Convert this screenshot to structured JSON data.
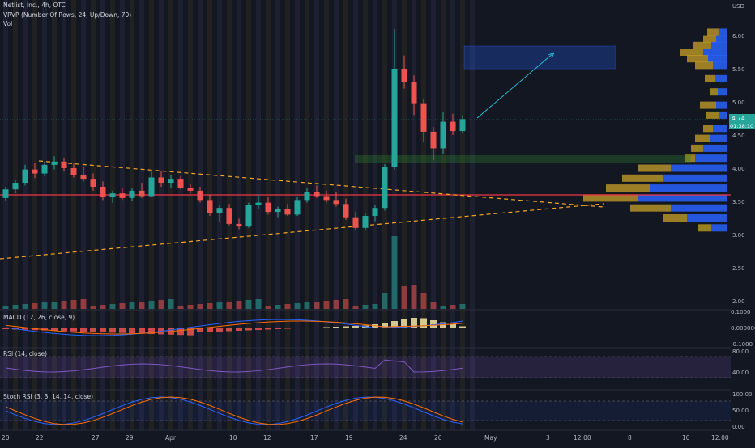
{
  "header": {
    "symbol_line": "Netlist, Inc., 4h, OTC",
    "indicator_vrvp": "VRVP (Number Of Rows, 24, Up/Down, 70)",
    "indicator_vol": "Vol"
  },
  "price_axis": {
    "currency": "USD",
    "ticks": [
      "6.00",
      "5.50",
      "5.00",
      "4.50",
      "4.00",
      "3.50",
      "3.00",
      "2.50",
      "2.00"
    ],
    "last_price": "4.74",
    "countdown": "01:38:10"
  },
  "time_axis": {
    "labels": [
      "20",
      "22",
      "27",
      "29",
      "Apr",
      "10",
      "12",
      "17",
      "19",
      "24",
      "26",
      "May",
      "3",
      "12:00",
      "8",
      "10",
      "12:00"
    ]
  },
  "macd": {
    "label": "MACD (12, 26, close, 9)",
    "ticks": [
      "0.1000",
      "0.000000",
      "-0.1000"
    ]
  },
  "rsi": {
    "label": "RSI (14, close)",
    "ticks": [
      "80.00",
      "40.00"
    ]
  },
  "stoch": {
    "label": "Stoch RSI (3, 3, 14, 14, close)",
    "ticks": [
      "100.00",
      "50.00",
      "0.00"
    ]
  },
  "colors": {
    "background": "#131722",
    "up": "#26a69a",
    "down": "#ef5350",
    "trendline": "#f5a623",
    "resistance": "#f23645",
    "rsi_band": "#7e57c2",
    "vrvp_up": "#2962ff",
    "vrvp_down": "#c9a227"
  },
  "chart_data": {
    "type": "candlestick",
    "title": "Netlist, Inc., 4h, OTC",
    "ylim": [
      2.0,
      6.2
    ],
    "candles": [
      {
        "o": 3.55,
        "h": 3.72,
        "l": 3.5,
        "c": 3.68
      },
      {
        "o": 3.68,
        "h": 3.82,
        "l": 3.62,
        "c": 3.78
      },
      {
        "o": 3.78,
        "h": 4.05,
        "l": 3.74,
        "c": 3.98
      },
      {
        "o": 3.98,
        "h": 4.08,
        "l": 3.85,
        "c": 3.92
      },
      {
        "o": 3.92,
        "h": 4.1,
        "l": 3.88,
        "c": 4.05
      },
      {
        "o": 4.05,
        "h": 4.18,
        "l": 3.98,
        "c": 4.1
      },
      {
        "o": 4.1,
        "h": 4.16,
        "l": 3.96,
        "c": 4.0
      },
      {
        "o": 4.0,
        "h": 4.08,
        "l": 3.86,
        "c": 3.9
      },
      {
        "o": 3.9,
        "h": 4.02,
        "l": 3.8,
        "c": 3.84
      },
      {
        "o": 3.84,
        "h": 3.92,
        "l": 3.66,
        "c": 3.72
      },
      {
        "o": 3.72,
        "h": 3.8,
        "l": 3.52,
        "c": 3.56
      },
      {
        "o": 3.56,
        "h": 3.66,
        "l": 3.48,
        "c": 3.62
      },
      {
        "o": 3.62,
        "h": 3.7,
        "l": 3.52,
        "c": 3.55
      },
      {
        "o": 3.55,
        "h": 3.7,
        "l": 3.5,
        "c": 3.66
      },
      {
        "o": 3.66,
        "h": 3.78,
        "l": 3.55,
        "c": 3.58
      },
      {
        "o": 3.58,
        "h": 3.95,
        "l": 3.56,
        "c": 3.86
      },
      {
        "o": 3.86,
        "h": 3.96,
        "l": 3.72,
        "c": 3.78
      },
      {
        "o": 3.78,
        "h": 3.9,
        "l": 3.7,
        "c": 3.84
      },
      {
        "o": 3.84,
        "h": 3.88,
        "l": 3.68,
        "c": 3.7
      },
      {
        "o": 3.7,
        "h": 3.76,
        "l": 3.62,
        "c": 3.66
      },
      {
        "o": 3.66,
        "h": 3.72,
        "l": 3.48,
        "c": 3.52
      },
      {
        "o": 3.52,
        "h": 3.6,
        "l": 3.28,
        "c": 3.32
      },
      {
        "o": 3.32,
        "h": 3.45,
        "l": 3.18,
        "c": 3.4
      },
      {
        "o": 3.4,
        "h": 3.46,
        "l": 3.14,
        "c": 3.16
      },
      {
        "o": 3.16,
        "h": 3.24,
        "l": 3.08,
        "c": 3.12
      },
      {
        "o": 3.12,
        "h": 3.48,
        "l": 3.1,
        "c": 3.44
      },
      {
        "o": 3.44,
        "h": 3.6,
        "l": 3.38,
        "c": 3.48
      },
      {
        "o": 3.48,
        "h": 3.56,
        "l": 3.3,
        "c": 3.34
      },
      {
        "o": 3.34,
        "h": 3.42,
        "l": 3.26,
        "c": 3.38
      },
      {
        "o": 3.38,
        "h": 3.46,
        "l": 3.28,
        "c": 3.3
      },
      {
        "o": 3.3,
        "h": 3.56,
        "l": 3.28,
        "c": 3.52
      },
      {
        "o": 3.52,
        "h": 3.7,
        "l": 3.48,
        "c": 3.64
      },
      {
        "o": 3.64,
        "h": 3.74,
        "l": 3.55,
        "c": 3.58
      },
      {
        "o": 3.58,
        "h": 3.66,
        "l": 3.48,
        "c": 3.52
      },
      {
        "o": 3.52,
        "h": 3.64,
        "l": 3.42,
        "c": 3.46
      },
      {
        "o": 3.46,
        "h": 3.54,
        "l": 3.22,
        "c": 3.26
      },
      {
        "o": 3.26,
        "h": 3.34,
        "l": 3.06,
        "c": 3.1
      },
      {
        "o": 3.1,
        "h": 3.32,
        "l": 3.06,
        "c": 3.28
      },
      {
        "o": 3.28,
        "h": 3.44,
        "l": 3.2,
        "c": 3.4
      },
      {
        "o": 3.4,
        "h": 4.06,
        "l": 3.36,
        "c": 4.02
      },
      {
        "o": 4.02,
        "h": 6.1,
        "l": 3.98,
        "c": 5.5
      },
      {
        "o": 5.5,
        "h": 5.7,
        "l": 5.2,
        "c": 5.3
      },
      {
        "o": 5.3,
        "h": 5.4,
        "l": 4.8,
        "c": 4.98
      },
      {
        "o": 4.98,
        "h": 5.05,
        "l": 4.4,
        "c": 4.55
      },
      {
        "o": 4.55,
        "h": 4.62,
        "l": 4.12,
        "c": 4.3
      },
      {
        "o": 4.3,
        "h": 4.84,
        "l": 4.22,
        "c": 4.7
      },
      {
        "o": 4.7,
        "h": 4.82,
        "l": 4.5,
        "c": 4.56
      },
      {
        "o": 4.56,
        "h": 4.8,
        "l": 4.52,
        "c": 4.74
      }
    ],
    "volume_profile_note": "Visible range volume profile with point of control near 3.55",
    "annotations": [
      {
        "type": "target-box",
        "from": 5.5,
        "to": 5.85
      },
      {
        "type": "support-box",
        "from": 4.1,
        "to": 4.2
      },
      {
        "type": "resistance-line",
        "value": 3.58
      },
      {
        "type": "arrow",
        "from": 4.74,
        "to": 5.75
      }
    ]
  }
}
